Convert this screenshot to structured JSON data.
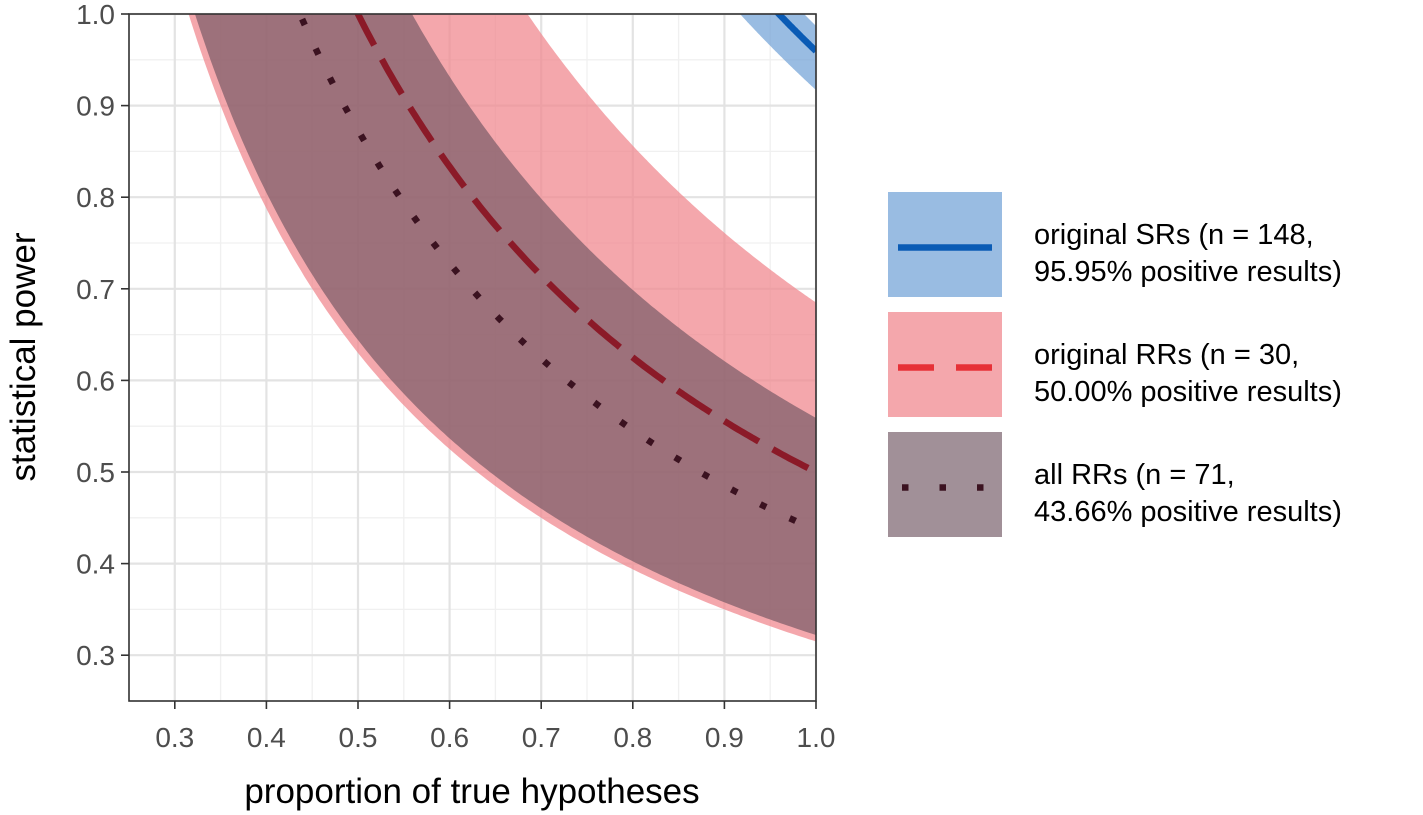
{
  "chart_data": {
    "type": "line",
    "xlabel": "proportion of true hypotheses",
    "ylabel": "statistical power",
    "xlim": [
      0.25,
      1.0
    ],
    "ylim": [
      0.25,
      1.0
    ],
    "x_ticks": [
      "0.3",
      "0.4",
      "0.5",
      "0.6",
      "0.7",
      "0.8",
      "0.9",
      "1.0"
    ],
    "y_ticks": [
      "0.3",
      "0.4",
      "0.5",
      "0.6",
      "0.7",
      "0.8",
      "0.9",
      "1.0"
    ],
    "grid": true,
    "legend_position": "right",
    "series": [
      {
        "key": "sr",
        "legend_lines": [
          "original SRs (n = 148,",
          "95.95% positive results)"
        ],
        "positive_rate": 0.9595,
        "band_low_rate": 0.917,
        "band_high_rate": 0.987,
        "line_style": "solid",
        "line_color": "#0a5bb5",
        "band_color": "#6e9fd6",
        "band_opacity": 0.7
      },
      {
        "key": "rr_orig",
        "legend_lines": [
          "original RRs (n = 30,",
          "50.00% positive results)"
        ],
        "positive_rate": 0.5,
        "band_low_rate": 0.315,
        "band_high_rate": 0.685,
        "line_style": "dashed",
        "line_color": "#e63036",
        "plot_line_color": "#8b1a28",
        "band_color": "#f08a90",
        "band_opacity": 0.75
      },
      {
        "key": "rr_all",
        "legend_lines": [
          "all RRs (n = 71,",
          "43.66% positive results)"
        ],
        "positive_rate": 0.4366,
        "band_low_rate": 0.322,
        "band_high_rate": 0.559,
        "line_style": "dotted",
        "line_color": "#3b1220",
        "band_color": "#6e5561",
        "band_opacity": 0.65
      }
    ]
  }
}
